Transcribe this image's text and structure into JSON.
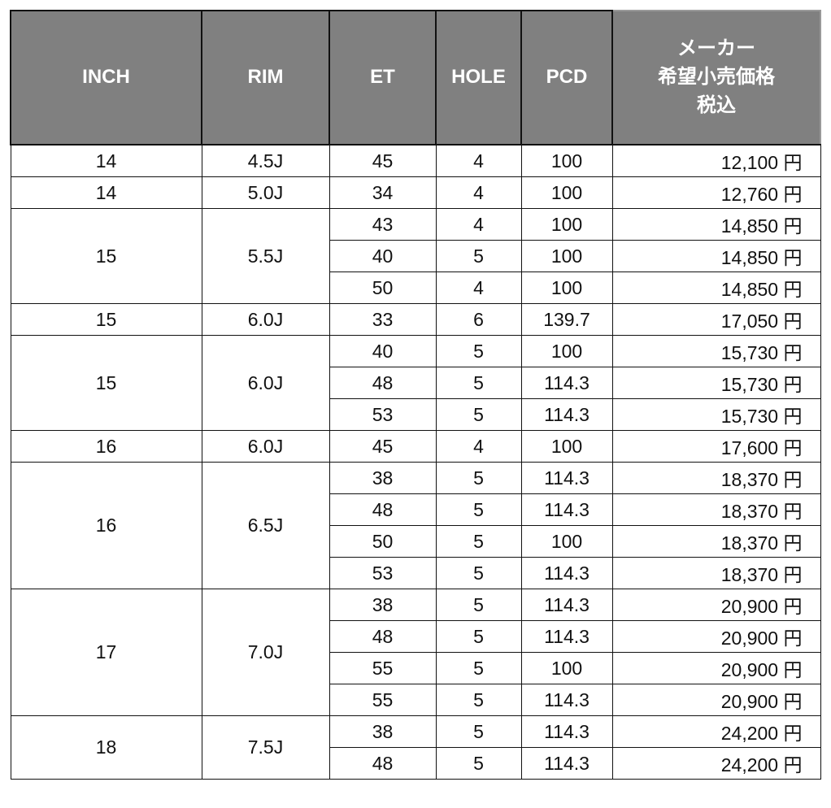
{
  "headers": {
    "inch": "INCH",
    "rim": "RIM",
    "et": "ET",
    "hole": "HOLE",
    "pcd": "PCD",
    "price_l1": "メーカー",
    "price_l2": "希望小売価格",
    "price_l3": "税込"
  },
  "currency_suffix": "円",
  "groups": [
    {
      "inch": "14",
      "rim": "4.5J",
      "rows": [
        {
          "et": "45",
          "hole": "4",
          "pcd": "100",
          "price": "12,100"
        }
      ]
    },
    {
      "inch": "14",
      "rim": "5.0J",
      "rows": [
        {
          "et": "34",
          "hole": "4",
          "pcd": "100",
          "price": "12,760"
        }
      ]
    },
    {
      "inch": "15",
      "rim": "5.5J",
      "rows": [
        {
          "et": "43",
          "hole": "4",
          "pcd": "100",
          "price": "14,850"
        },
        {
          "et": "40",
          "hole": "5",
          "pcd": "100",
          "price": "14,850"
        },
        {
          "et": "50",
          "hole": "4",
          "pcd": "100",
          "price": "14,850"
        }
      ]
    },
    {
      "inch": "15",
      "rim": "6.0J",
      "rows": [
        {
          "et": "33",
          "hole": "6",
          "pcd": "139.7",
          "price": "17,050"
        }
      ]
    },
    {
      "inch": "15",
      "rim": "6.0J",
      "rows": [
        {
          "et": "40",
          "hole": "5",
          "pcd": "100",
          "price": "15,730"
        },
        {
          "et": "48",
          "hole": "5",
          "pcd": "114.3",
          "price": "15,730"
        },
        {
          "et": "53",
          "hole": "5",
          "pcd": "114.3",
          "price": "15,730"
        }
      ]
    },
    {
      "inch": "16",
      "rim": "6.0J",
      "rows": [
        {
          "et": "45",
          "hole": "4",
          "pcd": "100",
          "price": "17,600"
        }
      ]
    },
    {
      "inch": "16",
      "rim": "6.5J",
      "rows": [
        {
          "et": "38",
          "hole": "5",
          "pcd": "114.3",
          "price": "18,370"
        },
        {
          "et": "48",
          "hole": "5",
          "pcd": "114.3",
          "price": "18,370"
        },
        {
          "et": "50",
          "hole": "5",
          "pcd": "100",
          "price": "18,370"
        },
        {
          "et": "53",
          "hole": "5",
          "pcd": "114.3",
          "price": "18,370"
        }
      ]
    },
    {
      "inch": "17",
      "rim": "7.0J",
      "rows": [
        {
          "et": "38",
          "hole": "5",
          "pcd": "114.3",
          "price": "20,900"
        },
        {
          "et": "48",
          "hole": "5",
          "pcd": "114.3",
          "price": "20,900"
        },
        {
          "et": "55",
          "hole": "5",
          "pcd": "100",
          "price": "20,900"
        },
        {
          "et": "55",
          "hole": "5",
          "pcd": "114.3",
          "price": "20,900"
        }
      ]
    },
    {
      "inch": "18",
      "rim": "7.5J",
      "rows": [
        {
          "et": "38",
          "hole": "5",
          "pcd": "114.3",
          "price": "24,200"
        },
        {
          "et": "48",
          "hole": "5",
          "pcd": "114.3",
          "price": "24,200"
        }
      ]
    }
  ]
}
